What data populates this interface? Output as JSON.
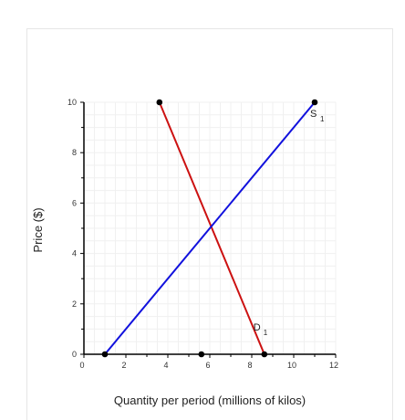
{
  "chart_data": {
    "type": "line",
    "xlabel": "Quantity per period (millions of kilos)",
    "ylabel": "Price ($)",
    "xlim": [
      0,
      12
    ],
    "ylim": [
      0,
      10
    ],
    "xticks": [
      0,
      2,
      4,
      6,
      8,
      10,
      12
    ],
    "yticks": [
      0,
      2,
      4,
      6,
      8,
      10
    ],
    "grid": true,
    "series": [
      {
        "name": "D",
        "subscript": "1",
        "color": "#cc1111",
        "points": [
          [
            3.6,
            10
          ],
          [
            8.6,
            0
          ]
        ]
      },
      {
        "name": "S",
        "subscript": "1",
        "color": "#1111dd",
        "points": [
          [
            1.0,
            0
          ],
          [
            11.0,
            10
          ]
        ]
      }
    ],
    "extra_points": [
      [
        5.6,
        0
      ]
    ]
  }
}
